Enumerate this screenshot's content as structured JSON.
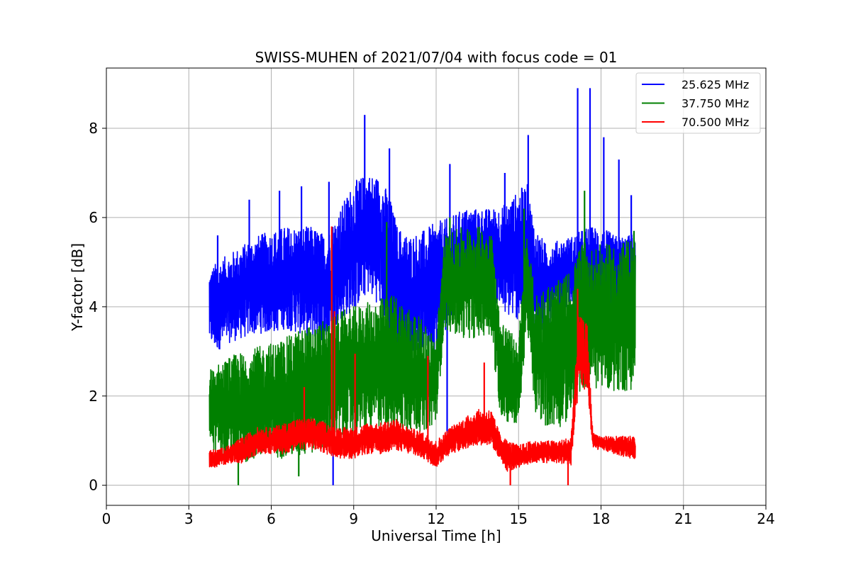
{
  "chart_data": {
    "type": "line",
    "title": "SWISS-MUHEN of 2021/07/04 with focus code = 01",
    "xlabel": "Universal Time [h]",
    "ylabel": "Y-factor [dB]",
    "xlim": [
      0,
      24
    ],
    "ylim": [
      -0.45,
      9.35
    ],
    "xticks": [
      0,
      3,
      6,
      9,
      12,
      15,
      18,
      21,
      24
    ],
    "xtick_labels": [
      "0",
      "3",
      "6",
      "9",
      "12",
      "15",
      "18",
      "21",
      "24"
    ],
    "yticks": [
      0,
      2,
      4,
      6,
      8
    ],
    "ytick_labels": [
      "0",
      "2",
      "4",
      "6",
      "8"
    ],
    "grid": true,
    "legend_position": "top-right",
    "series": [
      {
        "name": "25.625 MHz",
        "color": "#0000ff",
        "envelope": {
          "x": [
            3.75,
            4.0,
            4.5,
            5.0,
            5.5,
            6.0,
            6.5,
            7.0,
            7.5,
            8.0,
            8.5,
            9.0,
            9.5,
            10.0,
            10.3,
            10.6,
            11.0,
            11.5,
            12.0,
            12.5,
            13.0,
            13.5,
            14.0,
            14.5,
            15.0,
            15.3,
            15.6,
            16.0,
            16.5,
            17.0,
            17.5,
            18.0,
            18.5,
            19.0,
            19.25
          ],
          "low": [
            3.2,
            3.0,
            3.2,
            3.3,
            3.4,
            3.4,
            3.5,
            3.4,
            3.3,
            3.2,
            3.7,
            3.9,
            4.3,
            4.0,
            3.2,
            3.0,
            3.0,
            3.0,
            3.0,
            3.6,
            4.3,
            4.4,
            4.2,
            3.8,
            3.7,
            3.9,
            3.2,
            3.5,
            3.8,
            3.9,
            3.7,
            3.8,
            3.6,
            3.7,
            3.8
          ],
          "high": [
            4.8,
            5.0,
            5.2,
            5.4,
            5.6,
            5.7,
            5.8,
            5.8,
            5.8,
            5.6,
            6.2,
            6.8,
            7.0,
            6.9,
            6.5,
            5.8,
            5.6,
            5.7,
            5.9,
            6.0,
            6.2,
            6.2,
            6.2,
            6.3,
            6.6,
            6.8,
            5.8,
            5.4,
            5.5,
            5.6,
            5.8,
            5.8,
            5.6,
            5.6,
            5.7
          ]
        },
        "spikes": [
          {
            "x": 4.05,
            "y": 5.6
          },
          {
            "x": 5.2,
            "y": 6.4
          },
          {
            "x": 6.3,
            "y": 6.6
          },
          {
            "x": 7.1,
            "y": 6.7
          },
          {
            "x": 8.1,
            "y": 6.8
          },
          {
            "x": 8.25,
            "y": 0.0
          },
          {
            "x": 9.4,
            "y": 8.3
          },
          {
            "x": 10.3,
            "y": 7.55
          },
          {
            "x": 12.4,
            "y": 0.7
          },
          {
            "x": 12.5,
            "y": 7.2
          },
          {
            "x": 14.5,
            "y": 7.0
          },
          {
            "x": 15.35,
            "y": 7.85
          },
          {
            "x": 17.15,
            "y": 8.9
          },
          {
            "x": 17.6,
            "y": 8.9
          },
          {
            "x": 18.1,
            "y": 7.8
          },
          {
            "x": 18.65,
            "y": 7.3
          },
          {
            "x": 19.1,
            "y": 6.5
          }
        ]
      },
      {
        "name": "37.750 MHz",
        "color": "#008000",
        "envelope": {
          "x": [
            3.75,
            4.0,
            4.5,
            5.0,
            5.5,
            6.0,
            6.5,
            7.0,
            7.5,
            8.0,
            8.5,
            9.0,
            9.5,
            10.0,
            10.5,
            11.0,
            11.5,
            12.0,
            12.3,
            12.6,
            13.0,
            13.5,
            14.0,
            14.3,
            14.6,
            15.0,
            15.3,
            15.6,
            16.0,
            16.5,
            17.0,
            17.3,
            17.6,
            18.0,
            18.5,
            19.0,
            19.25
          ],
          "low": [
            0.9,
            0.7,
            0.6,
            0.5,
            0.6,
            0.6,
            0.6,
            0.6,
            0.7,
            0.8,
            1.0,
            1.1,
            1.2,
            1.3,
            1.2,
            1.2,
            1.2,
            1.4,
            3.5,
            3.4,
            3.3,
            3.3,
            3.4,
            1.6,
            1.4,
            1.3,
            3.6,
            1.6,
            1.3,
            1.3,
            1.5,
            2.2,
            2.1,
            2.2,
            2.1,
            2.1,
            2.2
          ],
          "high": [
            2.6,
            2.7,
            2.9,
            3.0,
            3.1,
            3.2,
            3.3,
            3.5,
            3.6,
            3.7,
            3.9,
            4.0,
            4.1,
            4.2,
            4.3,
            4.0,
            3.7,
            3.3,
            5.6,
            5.7,
            5.8,
            5.8,
            5.8,
            3.9,
            3.5,
            3.3,
            5.7,
            4.3,
            4.5,
            4.6,
            4.9,
            5.5,
            5.3,
            5.4,
            5.4,
            5.5,
            5.6
          ]
        },
        "spikes": [
          {
            "x": 4.8,
            "y": 0.0
          },
          {
            "x": 7.0,
            "y": 0.2
          },
          {
            "x": 8.2,
            "y": 5.5
          },
          {
            "x": 10.2,
            "y": 5.9
          },
          {
            "x": 12.5,
            "y": 6.0
          },
          {
            "x": 15.2,
            "y": 6.2
          },
          {
            "x": 17.4,
            "y": 6.6
          },
          {
            "x": 19.2,
            "y": 5.7
          }
        ]
      },
      {
        "name": "70.500 MHz",
        "color": "#ff0000",
        "envelope": {
          "x": [
            3.75,
            4.0,
            4.5,
            5.0,
            5.5,
            6.0,
            6.5,
            7.0,
            7.5,
            8.0,
            8.5,
            9.0,
            9.5,
            10.0,
            10.5,
            11.0,
            11.5,
            12.0,
            12.5,
            13.0,
            13.5,
            14.0,
            14.3,
            14.6,
            15.0,
            15.5,
            16.0,
            16.5,
            16.9,
            17.2,
            17.5,
            17.7,
            18.0,
            18.5,
            19.0,
            19.25
          ],
          "low": [
            0.4,
            0.4,
            0.5,
            0.5,
            0.7,
            0.7,
            0.7,
            0.8,
            0.8,
            0.7,
            0.6,
            0.6,
            0.7,
            0.7,
            0.8,
            0.7,
            0.6,
            0.4,
            0.7,
            0.8,
            0.9,
            0.9,
            0.6,
            0.3,
            0.4,
            0.5,
            0.5,
            0.5,
            0.4,
            2.2,
            2.1,
            0.8,
            0.8,
            0.7,
            0.6,
            0.6
          ],
          "high": [
            0.8,
            0.8,
            0.9,
            1.1,
            1.3,
            1.3,
            1.4,
            1.5,
            1.5,
            1.4,
            1.3,
            1.3,
            1.4,
            1.4,
            1.5,
            1.3,
            1.2,
            1.0,
            1.3,
            1.5,
            1.7,
            1.7,
            1.2,
            1.0,
            0.9,
            1.0,
            1.0,
            1.0,
            1.1,
            3.8,
            3.6,
            1.2,
            1.1,
            1.1,
            1.1,
            1.1
          ]
        },
        "spikes": [
          {
            "x": 7.2,
            "y": 2.2
          },
          {
            "x": 8.2,
            "y": 5.8
          },
          {
            "x": 8.3,
            "y": 3.9
          },
          {
            "x": 9.05,
            "y": 2.95
          },
          {
            "x": 11.7,
            "y": 2.9
          },
          {
            "x": 13.75,
            "y": 2.75
          },
          {
            "x": 14.7,
            "y": 0.0
          },
          {
            "x": 16.8,
            "y": 0.0
          },
          {
            "x": 17.15,
            "y": 4.4
          }
        ]
      }
    ]
  }
}
